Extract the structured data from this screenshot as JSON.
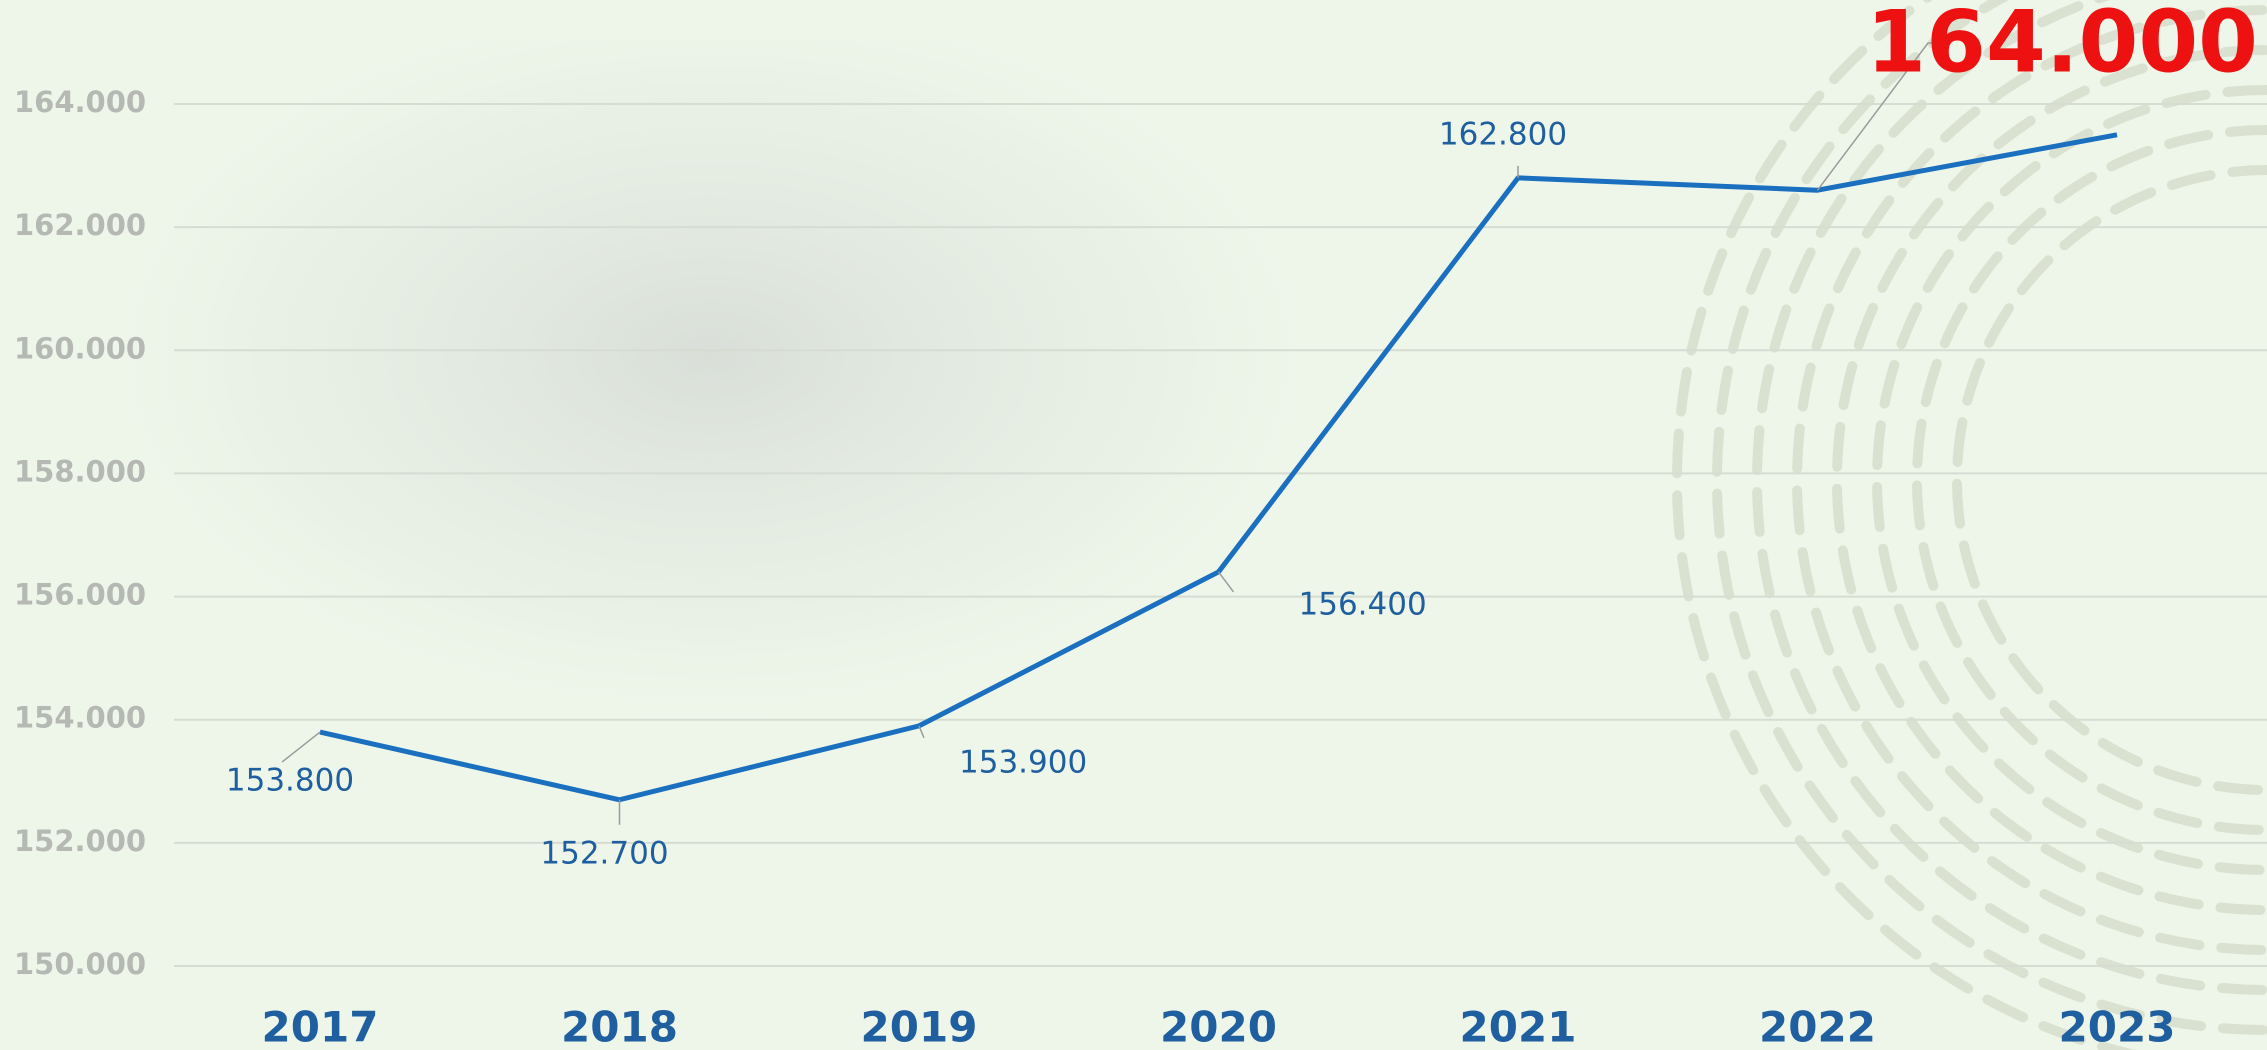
{
  "chart_data": {
    "type": "line",
    "categories": [
      "2017",
      "2018",
      "2019",
      "2020",
      "2021",
      "2022",
      "2023"
    ],
    "series": [
      {
        "name": null,
        "color": "#1a6fbf",
        "values": [
          153800,
          152700,
          153900,
          156400,
          162800,
          162600,
          163500
        ],
        "value_labels": [
          "153.800",
          "152.700",
          "153.900",
          "156.400",
          "162.800",
          null,
          null
        ]
      }
    ],
    "annotation": "164.000",
    "ylim": [
      150000,
      164000
    ],
    "yticks": [
      {
        "value": 150000,
        "label": "150.000"
      },
      {
        "value": 152000,
        "label": "152.000"
      },
      {
        "value": 154000,
        "label": "154.000"
      },
      {
        "value": 156000,
        "label": "156.000"
      },
      {
        "value": 158000,
        "label": "158.000"
      },
      {
        "value": 160000,
        "label": "160.000"
      },
      {
        "value": 162000,
        "label": "162.000"
      },
      {
        "value": 164000,
        "label": "164.000"
      }
    ],
    "grid": true
  }
}
